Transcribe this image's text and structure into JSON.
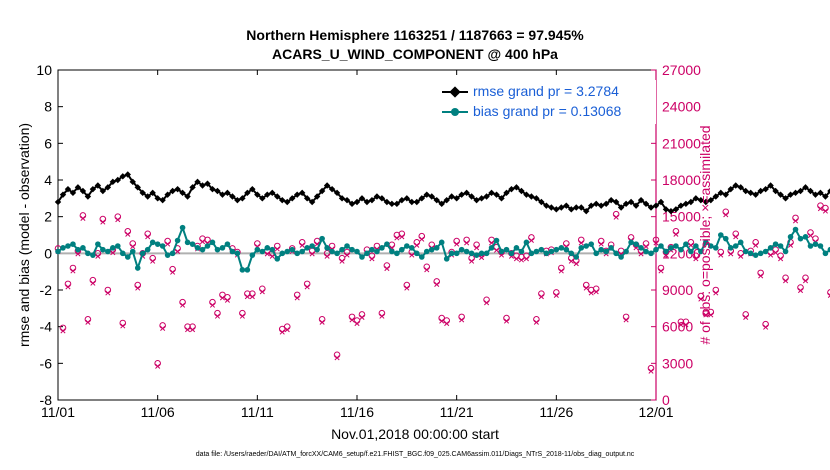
{
  "title_line1": "Northern Hemisphere 1163251 / 1187663 = 97.945%",
  "title_line2": "ACARS_U_WIND_COMPONENT @ 400 hPa",
  "footer": "data file: /Users/raeder/DAI/ATM_forcXX/CAM6_setup/f.e21.FHIST_BGC.f09_025.CAM6assim.011/Diags_NTrS_2018-11/obs_diag_output.nc",
  "colors": {
    "rmse": "#000000",
    "bias": "#008080",
    "obs": "#cc0066",
    "zero": "#b0b0b0"
  },
  "chart_data": {
    "type": "line",
    "xlabel": "Nov.01,2018 00:00:00 start",
    "ylabel_left": "rmse and bias (model - observation)",
    "ylabel_right": "# of obs: o=possible; ×=assimilated",
    "xlim": [
      0,
      30
    ],
    "ylim_left": [
      -8,
      10
    ],
    "ylim_right": [
      0,
      27000
    ],
    "x_ticks": [
      0,
      5,
      10,
      15,
      20,
      25,
      30
    ],
    "x_tick_labels": [
      "11/01",
      "11/06",
      "11/11",
      "11/16",
      "11/21",
      "11/26",
      "12/01"
    ],
    "y_ticks_left": [
      -8,
      -6,
      -4,
      -2,
      0,
      2,
      4,
      6,
      8,
      10
    ],
    "y_ticks_right": [
      0,
      3000,
      6000,
      9000,
      12000,
      15000,
      18000,
      21000,
      24000,
      27000
    ],
    "legend": [
      "rmse grand pr = 3.2784",
      "bias grand pr = 0.13068"
    ],
    "x_step_days": 0.25,
    "series": [
      {
        "name": "rmse grand pr = 3.2784",
        "axis": "left",
        "values": [
          2.8,
          3.2,
          3.5,
          3.3,
          3.6,
          3.4,
          3.1,
          3.5,
          3.7,
          3.4,
          3.6,
          3.9,
          4.0,
          4.2,
          4.3,
          3.9,
          3.6,
          3.3,
          3.1,
          3.3,
          3.0,
          2.9,
          3.2,
          3.4,
          3.5,
          3.3,
          3.1,
          3.6,
          3.9,
          3.7,
          3.8,
          3.5,
          3.4,
          3.2,
          3.3,
          3.1,
          2.9,
          3.0,
          3.3,
          3.5,
          3.2,
          3.0,
          3.2,
          3.3,
          3.1,
          2.9,
          2.8,
          3.0,
          3.2,
          3.3,
          3.0,
          2.8,
          3.1,
          3.4,
          3.7,
          3.5,
          3.3,
          3.0,
          2.9,
          2.7,
          2.8,
          3.0,
          2.8,
          2.9,
          3.1,
          3.0,
          2.8,
          2.7,
          2.7,
          2.9,
          3.0,
          2.8,
          2.8,
          3.0,
          3.2,
          3.1,
          2.9,
          2.7,
          2.9,
          3.1,
          3.0,
          3.2,
          3.3,
          3.1,
          2.9,
          3.0,
          3.1,
          3.3,
          3.2,
          3.0,
          3.3,
          3.5,
          3.6,
          3.4,
          3.2,
          3.1,
          3.0,
          2.8,
          2.6,
          2.5,
          2.4,
          2.5,
          2.6,
          2.4,
          2.5,
          2.5,
          2.3,
          2.6,
          2.7,
          2.6,
          2.7,
          2.9,
          2.8,
          2.5,
          2.7,
          2.8,
          2.6,
          2.9,
          2.7,
          2.5,
          2.6,
          2.8,
          2.4,
          2.3,
          2.4,
          2.6,
          2.7,
          2.8,
          3.0,
          2.9,
          2.8,
          2.9,
          3.1,
          3.3,
          3.2,
          3.5,
          3.7,
          3.6,
          3.4,
          3.3,
          3.2,
          3.4,
          3.5,
          3.7,
          3.4,
          3.2,
          3.0,
          3.2,
          3.3,
          3.4,
          3.6,
          3.4,
          3.2,
          3.3,
          3.1,
          3.4,
          3.5,
          3.6,
          3.4,
          3.5,
          3.8,
          3.6,
          3.4,
          3.5,
          3.7,
          3.5,
          3.3,
          3.6,
          3.4,
          3.9,
          4.9,
          4.3,
          3.7,
          3.4
        ]
      },
      {
        "name": "bias grand pr = 0.13068",
        "axis": "left",
        "values": [
          0.1,
          0.3,
          0.4,
          0.5,
          0.2,
          0.3,
          0.0,
          -0.1,
          0.5,
          0.2,
          0.1,
          0.3,
          0.4,
          0.0,
          -0.2,
          0.1,
          -0.8,
          0.0,
          0.2,
          0.6,
          0.5,
          0.4,
          -0.1,
          0.0,
          0.7,
          1.4,
          0.6,
          0.5,
          0.3,
          0.2,
          0.4,
          0.6,
          0.2,
          0.3,
          0.5,
          0.1,
          0.0,
          -0.9,
          -0.9,
          -0.1,
          0.2,
          0.1,
          0.3,
          0.2,
          -0.3,
          0.0,
          0.1,
          0.2,
          0.0,
          0.1,
          0.3,
          0.4,
          0.2,
          0.8,
          0.3,
          0.1,
          0.0,
          0.2,
          0.4,
          0.2,
          0.1,
          -0.2,
          0.0,
          0.2,
          0.1,
          0.3,
          0.5,
          0.1,
          0.0,
          0.2,
          0.4,
          0.3,
          0.0,
          -0.2,
          0.1,
          0.2,
          0.3,
          0.6,
          -0.3,
          0.0,
          0.0,
          0.2,
          0.1,
          0.0,
          -0.1,
          0.0,
          0.0,
          0.3,
          0.7,
          0.1,
          0.2,
          0.0,
          0.3,
          0.1,
          0.6,
          0.0,
          0.1,
          0.2,
          0.0,
          0.1,
          0.2,
          0.3,
          0.2,
          0.0,
          -0.2,
          0.3,
          0.4,
          0.5,
          0.0,
          0.2,
          0.1,
          0.3,
          0.0,
          -0.2,
          0.1,
          0.6,
          0.5,
          0.3,
          0.1,
          0.0,
          0.2,
          0.4,
          0.1,
          0.3,
          0.4,
          0.2,
          0.5,
          0.1,
          0.4,
          0.1,
          0.6,
          0.4,
          0.3,
          1.0,
          0.8,
          0.3,
          0.4,
          0.6,
          0.1,
          0.0,
          -0.1,
          0.0,
          0.1,
          0.3,
          0.5,
          0.4,
          0.1,
          0.9,
          1.3,
          0.8,
          0.9,
          0.4,
          0.5,
          0.4,
          0.0,
          0.2,
          0.3,
          0.6,
          0.9,
          0.7,
          0.6,
          0.5,
          0.8,
          0.7,
          0.8,
          0.9,
          0.7,
          0.9,
          1.1,
          1.5,
          0.8,
          0.4,
          0.2,
          0.1,
          -0.1
        ]
      },
      {
        "name": "# of obs possible",
        "axis": "right",
        "values": [
          12400,
          5900,
          9500,
          10800,
          12200,
          15100,
          6600,
          9800,
          12000,
          14800,
          9000,
          12300,
          15000,
          6300,
          13800,
          12800,
          9400,
          12000,
          13600,
          11600,
          3000,
          6100,
          13000,
          10700,
          12400,
          8000,
          6000,
          6000,
          12600,
          13200,
          13100,
          8000,
          7100,
          8600,
          8400,
          12400,
          12100,
          7100,
          8700,
          8700,
          12800,
          9100,
          12200,
          12000,
          12600,
          5800,
          6000,
          12400,
          8600,
          12900,
          9500,
          12200,
          13000,
          6600,
          12000,
          12600,
          3700,
          11600,
          12100,
          6800,
          6500,
          7000,
          12300,
          11800,
          12600,
          7100,
          11000,
          12700,
          13500,
          13600,
          9400,
          12100,
          12900,
          13400,
          10900,
          12700,
          9700,
          6700,
          6500,
          12100,
          13000,
          6800,
          13100,
          11600,
          12700,
          11900,
          8200,
          13100,
          12500,
          12100,
          6700,
          12000,
          11800,
          11700,
          11800,
          13300,
          6600,
          8700,
          12200,
          12300,
          8800,
          10800,
          12800,
          11600,
          11400,
          13100,
          9400,
          9000,
          9100,
          13000,
          12200,
          12700,
          15200,
          12200,
          6800,
          13300,
          12700,
          12200,
          12800,
          2600,
          13100,
          10800,
          12100,
          12500,
          13800,
          6400,
          6400,
          12900,
          11800,
          8500,
          7200,
          7200,
          9000,
          12100,
          15400,
          12200,
          13600,
          12000,
          7000,
          12200,
          12900,
          10400,
          6200,
          12100,
          12300,
          11800,
          10000,
          12900,
          14900,
          9200,
          10000,
          13700,
          13200,
          15900,
          15700,
          8800,
          9200,
          11700,
          11400,
          12200,
          8200,
          14500,
          15300,
          11900,
          12600,
          14800,
          12400,
          8400,
          13300,
          12900,
          12300,
          0
        ]
      }
    ]
  }
}
